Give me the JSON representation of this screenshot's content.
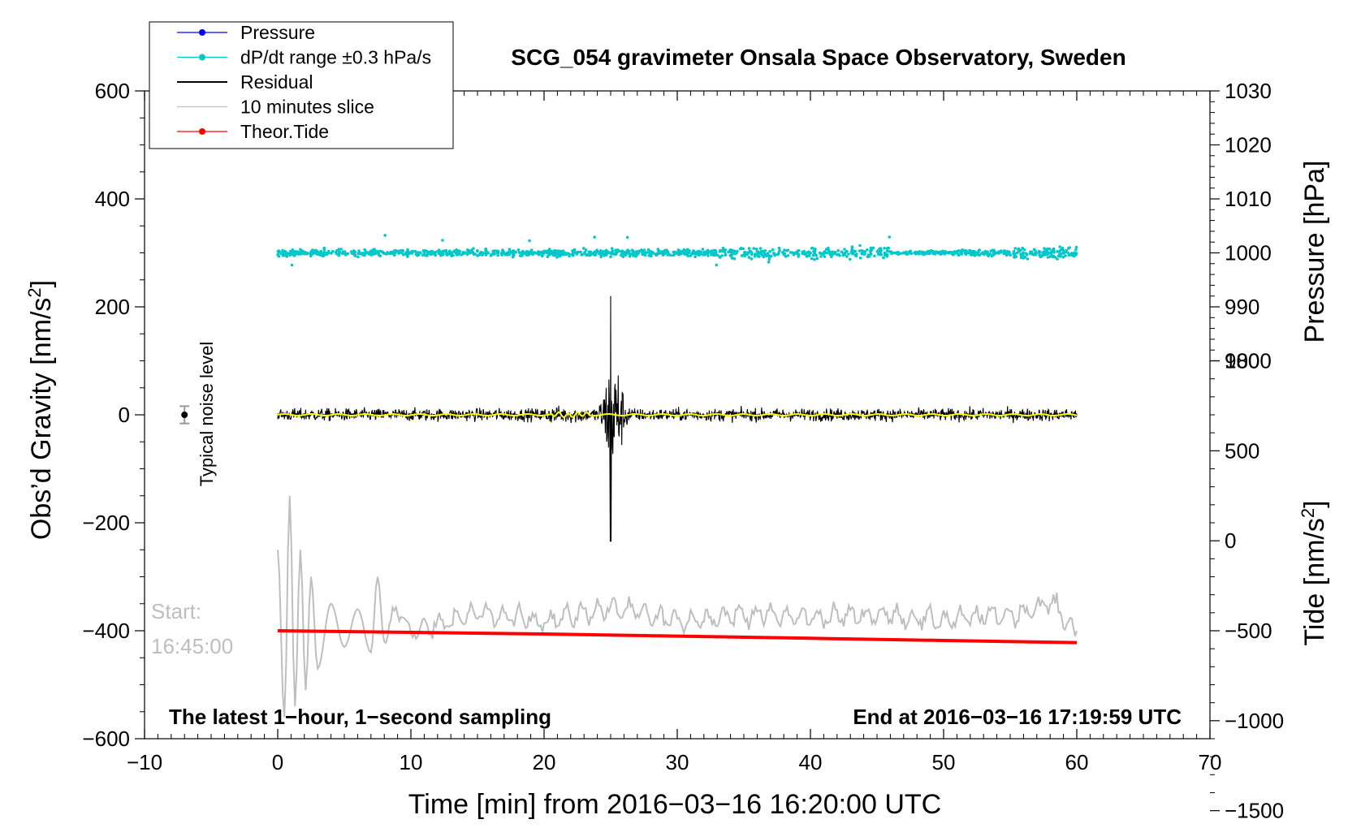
{
  "chart_data": {
    "type": "line",
    "title": "SCG_054 gravimeter Onsala Space Observatory, Sweden",
    "xlabel": "Time [min] from 2016−03−16 16:20:00 UTC",
    "ylabel_left": "Obs’d Gravity [nm/s",
    "ylabel_left_sup": "2",
    "ylabel_left_tail": "]",
    "ylabel_right_top": "Pressure [hPa]",
    "ylabel_right_bottom": "Tide [nm/s",
    "ylabel_right_bottom_sup": "2",
    "ylabel_right_bottom_tail": "]",
    "xlim": [
      -10,
      70
    ],
    "ylim": [
      -600,
      600
    ],
    "x_ticks": [
      -10,
      0,
      10,
      20,
      30,
      40,
      50,
      60,
      70
    ],
    "x_tick_labels": [
      "−10",
      "0",
      "10",
      "20",
      "30",
      "40",
      "50",
      "60",
      "70"
    ],
    "y_ticks": [
      -600,
      -400,
      -200,
      0,
      200,
      400,
      600
    ],
    "y_tick_labels": [
      "−600",
      "−400",
      "−200",
      "0",
      "200",
      "400",
      "600"
    ],
    "pressure_axis": {
      "ticks": [
        980,
        990,
        1000,
        1010,
        1020,
        1030
      ],
      "tick_labels": [
        "980",
        "990",
        "1000",
        "1010",
        "1020",
        "1030"
      ],
      "map": {
        "value_a": 1000,
        "gravity_a": 300,
        "value_b": 1030,
        "gravity_b": 600
      }
    },
    "tide_axis": {
      "ticks": [
        -1500,
        -1000,
        -500,
        0,
        500,
        1000
      ],
      "tick_labels": [
        "−1500",
        "−1000",
        "−500",
        "0",
        "500",
        "1000"
      ],
      "map": {
        "value_a": -500,
        "gravity_a": -400,
        "value_b": 1000,
        "gravity_b": 100
      }
    },
    "legend": {
      "placement": "top-left",
      "entries": [
        {
          "name": "Pressure",
          "color": "#0000ff",
          "marker": true
        },
        {
          "name": "dP/dt range ±0.3 hPa/s",
          "color": "#00c8c8",
          "marker": true
        },
        {
          "name": "Residual",
          "color": "#000000",
          "marker": false
        },
        {
          "name": "10 minutes slice",
          "color": "#bebebe",
          "marker": false
        },
        {
          "name": "Theor.Tide",
          "color": "#ff0000",
          "marker": true
        }
      ]
    },
    "series": [
      {
        "name": "dP/dt range ±0.3 hPa/s",
        "color": "#00c8c8",
        "kind": "scatter",
        "x_range": [
          0,
          60
        ],
        "level": 300,
        "typical_spread": 8,
        "max_excursion": [
          -25,
          35
        ]
      },
      {
        "name": "Residual",
        "color": "#000000",
        "kind": "line",
        "x_range": [
          0,
          60
        ],
        "level": 0,
        "typical_amplitude": 18,
        "event": {
          "x_peak": 25,
          "max": 220,
          "min": -235
        }
      },
      {
        "name": "Residual (smoothed)",
        "color": "#ffff00",
        "kind": "line",
        "x_range": [
          0,
          60
        ],
        "level": 0
      },
      {
        "name": "10 minutes slice",
        "color": "#bebebe",
        "kind": "line",
        "x_range": [
          0,
          60
        ],
        "x": [
          0,
          0.5,
          0.9,
          1.3,
          1.7,
          2.1,
          2.5,
          3,
          4,
          5,
          6,
          7,
          7.5,
          8,
          9,
          10,
          15,
          20,
          25,
          30,
          35,
          40,
          45,
          50,
          55,
          58,
          60
        ],
        "y": [
          -250,
          -560,
          -150,
          -540,
          -250,
          -510,
          -300,
          -470,
          -350,
          -430,
          -360,
          -440,
          -300,
          -420,
          -360,
          -400,
          -370,
          -380,
          -360,
          -380,
          -370,
          -375,
          -370,
          -380,
          -370,
          -350,
          -400
        ]
      },
      {
        "name": "Theor.Tide",
        "color": "#ff0000",
        "kind": "line",
        "x": [
          0,
          10,
          20,
          30,
          40,
          50,
          60
        ],
        "y": [
          -400,
          -403,
          -406,
          -410,
          -414,
          -418,
          -422
        ]
      }
    ],
    "annotations": {
      "noise_label": "Typical noise level",
      "noise_point": {
        "x": -7,
        "y": 0,
        "err": 16
      },
      "start_label": "Start:",
      "start_time": "16:45:00",
      "footer_left": "The latest 1−hour, 1−second sampling",
      "footer_right": "End at 2016−03−16 17:19:59 UTC"
    }
  }
}
